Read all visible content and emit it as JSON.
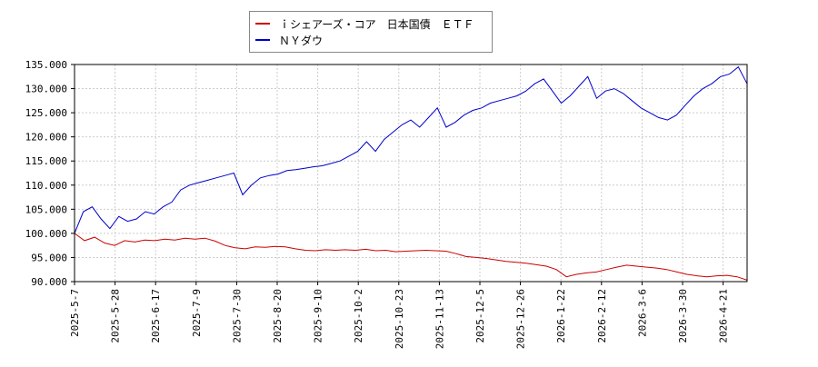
{
  "chart_data": {
    "type": "line",
    "title": "",
    "xlabel": "",
    "ylabel": "",
    "x_ticks": [
      "2025-5-7",
      "2025-5-28",
      "2025-6-17",
      "2025-7-9",
      "2025-7-30",
      "2025-8-20",
      "2025-9-10",
      "2025-10-2",
      "2025-10-23",
      "2025-11-13",
      "2025-12-5",
      "2025-12-26",
      "2026-1-22",
      "2026-2-12",
      "2026-3-6",
      "2026-3-30",
      "2026-4-21"
    ],
    "y_ticks": [
      "90.000",
      "95.000",
      "100.000",
      "105.000",
      "110.000",
      "115.000",
      "120.000",
      "125.000",
      "130.000",
      "135.000"
    ],
    "ylim": [
      90,
      135
    ],
    "grid": true,
    "legend_position": "top-center",
    "series": [
      {
        "name": "ｉシェアーズ・コア　日本国債　ＥＴＦ",
        "color": "#cc0000",
        "values": [
          100.0,
          98.5,
          99.2,
          98.0,
          97.5,
          98.5,
          98.2,
          98.6,
          98.5,
          98.8,
          98.6,
          99.0,
          98.8,
          99.0,
          98.4,
          97.5,
          97.0,
          96.8,
          97.2,
          97.1,
          97.3,
          97.2,
          96.8,
          96.5,
          96.4,
          96.6,
          96.5,
          96.6,
          96.5,
          96.7,
          96.4,
          96.5,
          96.2,
          96.3,
          96.4,
          96.5,
          96.4,
          96.3,
          95.8,
          95.2,
          95.0,
          94.8,
          94.5,
          94.2,
          94.0,
          93.8,
          93.5,
          93.2,
          92.5,
          91.0,
          91.5,
          91.8,
          92.0,
          92.5,
          93.0,
          93.4,
          93.2,
          93.0,
          92.8,
          92.5,
          92.0,
          91.5,
          91.2,
          91.0,
          91.2,
          91.3,
          91.0,
          90.3
        ]
      },
      {
        "name": "ＮＹダウ",
        "color": "#0000cc",
        "values": [
          100.0,
          104.5,
          105.5,
          103.0,
          101.0,
          103.5,
          102.5,
          103.0,
          104.5,
          104.0,
          105.5,
          106.5,
          109.0,
          110.0,
          110.5,
          111.0,
          111.5,
          112.0,
          112.5,
          108.0,
          110.0,
          111.5,
          112.0,
          112.3,
          113.0,
          113.2,
          113.5,
          113.8,
          114.0,
          114.5,
          115.0,
          116.0,
          117.0,
          119.0,
          117.0,
          119.5,
          121.0,
          122.5,
          123.5,
          122.0,
          124.0,
          126.0,
          122.0,
          123.0,
          124.5,
          125.5,
          126.0,
          127.0,
          127.5,
          128.0,
          128.5,
          129.5,
          131.0,
          132.0,
          129.5,
          127.0,
          128.5,
          130.5,
          132.5,
          128.0,
          129.5,
          130.0,
          129.0,
          127.5,
          126.0,
          125.0,
          124.0,
          123.5,
          124.5,
          126.5,
          128.5,
          130.0,
          131.0,
          132.5,
          133.0,
          134.5,
          131.0
        ]
      }
    ]
  }
}
